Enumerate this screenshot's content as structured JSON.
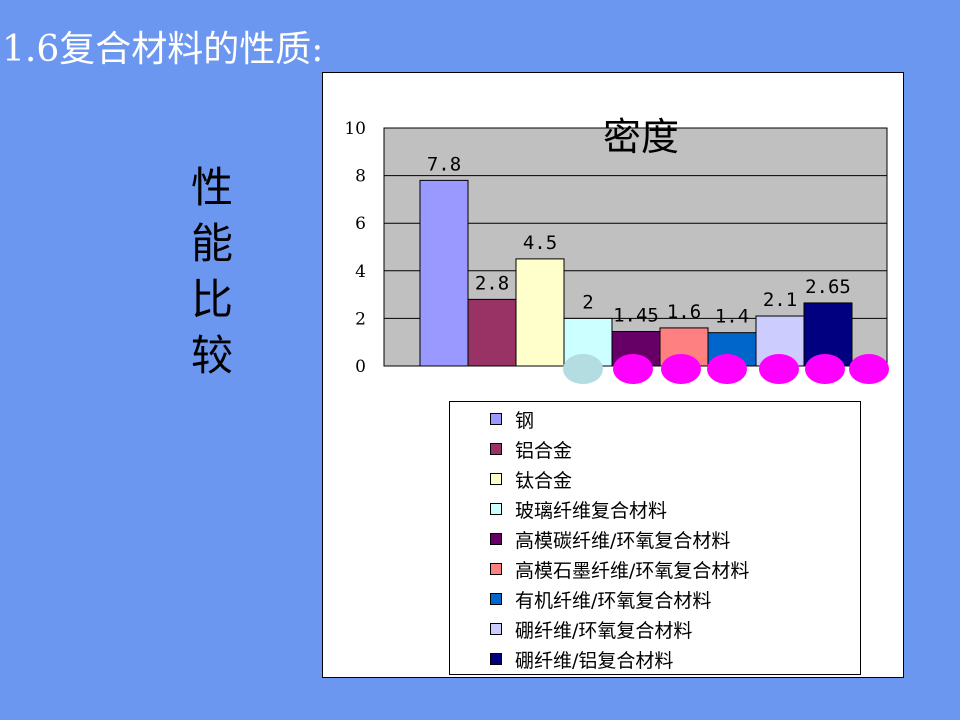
{
  "slide": {
    "title": "1.6复合材料的性质:",
    "side_label": [
      "性",
      "能",
      "比",
      "较"
    ]
  },
  "chart_data": {
    "type": "bar",
    "title": "密度",
    "xlabel": "",
    "ylabel": "",
    "ylim": [
      0,
      10
    ],
    "yticks": [
      "0",
      "2",
      "4",
      "6",
      "8",
      "10"
    ],
    "grid": true,
    "legend_position": "bottom",
    "series": [
      {
        "name": "钢",
        "value": 7.8,
        "label": "7.8",
        "color": "#9999ff"
      },
      {
        "name": "铝合金",
        "value": 2.8,
        "label": "2.8",
        "color": "#993366"
      },
      {
        "name": "钛合金",
        "value": 4.5,
        "label": "4.5",
        "color": "#ffffcc"
      },
      {
        "name": "玻璃纤维复合材料",
        "value": 2,
        "label": "2",
        "color": "#ccffff"
      },
      {
        "name": "高模碳纤维/环氧复合材料",
        "value": 1.45,
        "label": "1.45",
        "color": "#660066"
      },
      {
        "name": "高模石墨纤维/环氧复合材料",
        "value": 1.6,
        "label": "1.6",
        "color": "#ff8080"
      },
      {
        "name": "有机纤维/环氧复合材料",
        "value": 1.4,
        "label": "1.4",
        "color": "#0066cc"
      },
      {
        "name": "硼纤维/环氧复合材料",
        "value": 2.1,
        "label": "2.1",
        "color": "#ccccff"
      },
      {
        "name": "硼纤维/铝复合材料",
        "value": 2.65,
        "label": "2.65",
        "color": "#000080"
      }
    ],
    "plot_area_color": "#c0c0c0",
    "markers": [
      {
        "color": "#b3dde0"
      },
      {
        "color": "#ff00ff"
      },
      {
        "color": "#ff00ff"
      },
      {
        "color": "#ff00ff"
      },
      {
        "color": "#ff00ff"
      },
      {
        "color": "#ff00ff"
      },
      {
        "color": "#ff00ff"
      }
    ]
  }
}
